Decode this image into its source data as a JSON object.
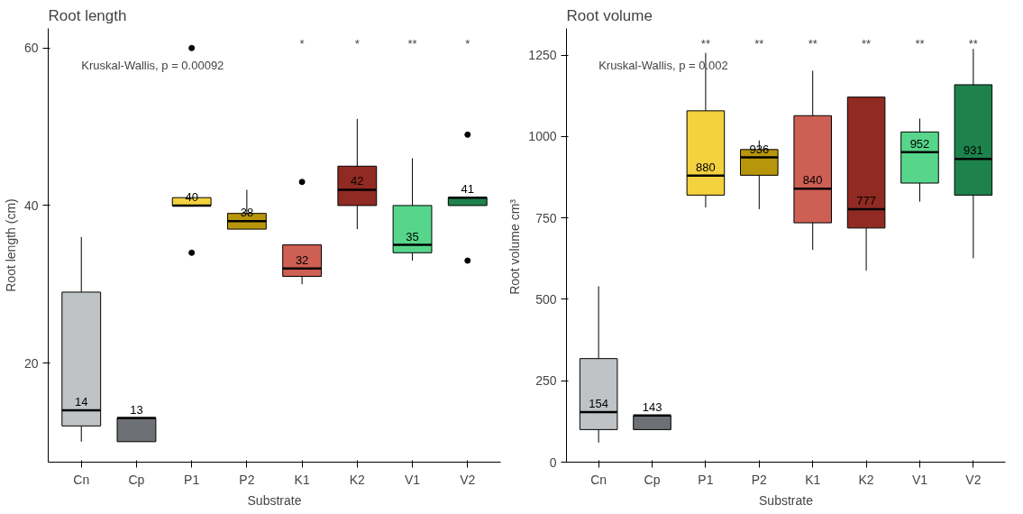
{
  "chart_data": [
    {
      "type": "box",
      "title": "Root length",
      "xlabel": "Substrate",
      "ylabel": "Root length (cm)",
      "categories": [
        "Cn",
        "Cp",
        "P1",
        "P2",
        "K1",
        "K2",
        "V1",
        "V2"
      ],
      "colors": [
        "#bfc3c6",
        "#6d7075",
        "#f3d13f",
        "#b8960c",
        "#cd5f53",
        "#912a22",
        "#57d68b",
        "#1e824c"
      ],
      "boxes": [
        {
          "low": 10,
          "q1": 12,
          "median": 14,
          "q3": 29,
          "high": 36
        },
        {
          "low": 10,
          "q1": 10,
          "median": 13,
          "q3": 13,
          "high": 13
        },
        {
          "low": 40,
          "q1": 40,
          "median": 40,
          "q3": 41,
          "high": 41,
          "outliers": [
            34,
            60
          ]
        },
        {
          "low": 37,
          "q1": 37,
          "median": 38,
          "q3": 39,
          "high": 42
        },
        {
          "low": 30,
          "q1": 31,
          "median": 32,
          "q3": 35,
          "high": 35,
          "outliers": [
            43
          ]
        },
        {
          "low": 37,
          "q1": 40,
          "median": 42,
          "q3": 45,
          "high": 51
        },
        {
          "low": 33,
          "q1": 34,
          "median": 35,
          "q3": 40,
          "high": 46
        },
        {
          "low": 40,
          "q1": 40,
          "median": 41,
          "q3": 41,
          "high": 41,
          "outliers": [
            49,
            33
          ]
        }
      ],
      "value_labels": [
        "14",
        "13",
        "40",
        "38",
        "32",
        "42",
        "35",
        "41"
      ],
      "ylim": [
        7.4,
        62.5
      ],
      "yticks": [
        20,
        40,
        60
      ],
      "grid": false,
      "annotations": [
        "Kruskal-Wallis, p = 0.00092",
        "*",
        "*",
        "**",
        "*"
      ]
    },
    {
      "type": "box",
      "title": "Root volume",
      "xlabel": "Substrate",
      "ylabel": "Root volume  cm³",
      "categories": [
        "Cn",
        "Cp",
        "P1",
        "P2",
        "K1",
        "K2",
        "V1",
        "V2"
      ],
      "colors": [
        "#bfc3c6",
        "#6d7075",
        "#f3d13f",
        "#b8960c",
        "#cd5f53",
        "#912a22",
        "#57d68b",
        "#1e824c"
      ],
      "boxes": [
        {
          "low": 60,
          "q1": 100,
          "median": 154,
          "q3": 318,
          "high": 540
        },
        {
          "low": 100,
          "q1": 100,
          "median": 143,
          "q3": 143,
          "high": 143
        },
        {
          "low": 782,
          "q1": 820,
          "median": 880,
          "q3": 1079,
          "high": 1257
        },
        {
          "low": 777,
          "q1": 881,
          "median": 936,
          "q3": 960,
          "high": 988
        },
        {
          "low": 652,
          "q1": 735,
          "median": 840,
          "q3": 1064,
          "high": 1202
        },
        {
          "low": 588,
          "q1": 719,
          "median": 777,
          "q3": 1121,
          "high": 1121
        },
        {
          "low": 800,
          "q1": 857,
          "median": 952,
          "q3": 1014,
          "high": 1055
        },
        {
          "low": 626,
          "q1": 820,
          "median": 931,
          "q3": 1159,
          "high": 1269
        }
      ],
      "value_labels": [
        "154",
        "143",
        "880",
        "936",
        "840",
        "777",
        "952",
        "931"
      ],
      "ylim": [
        0,
        1332
      ],
      "yticks": [
        0,
        250,
        500,
        750,
        1000,
        1250
      ],
      "grid": false,
      "annotations": [
        "Kruskal-Wallis, p = 0.002",
        "**",
        "**",
        "**",
        "**",
        "**",
        "**"
      ]
    }
  ]
}
